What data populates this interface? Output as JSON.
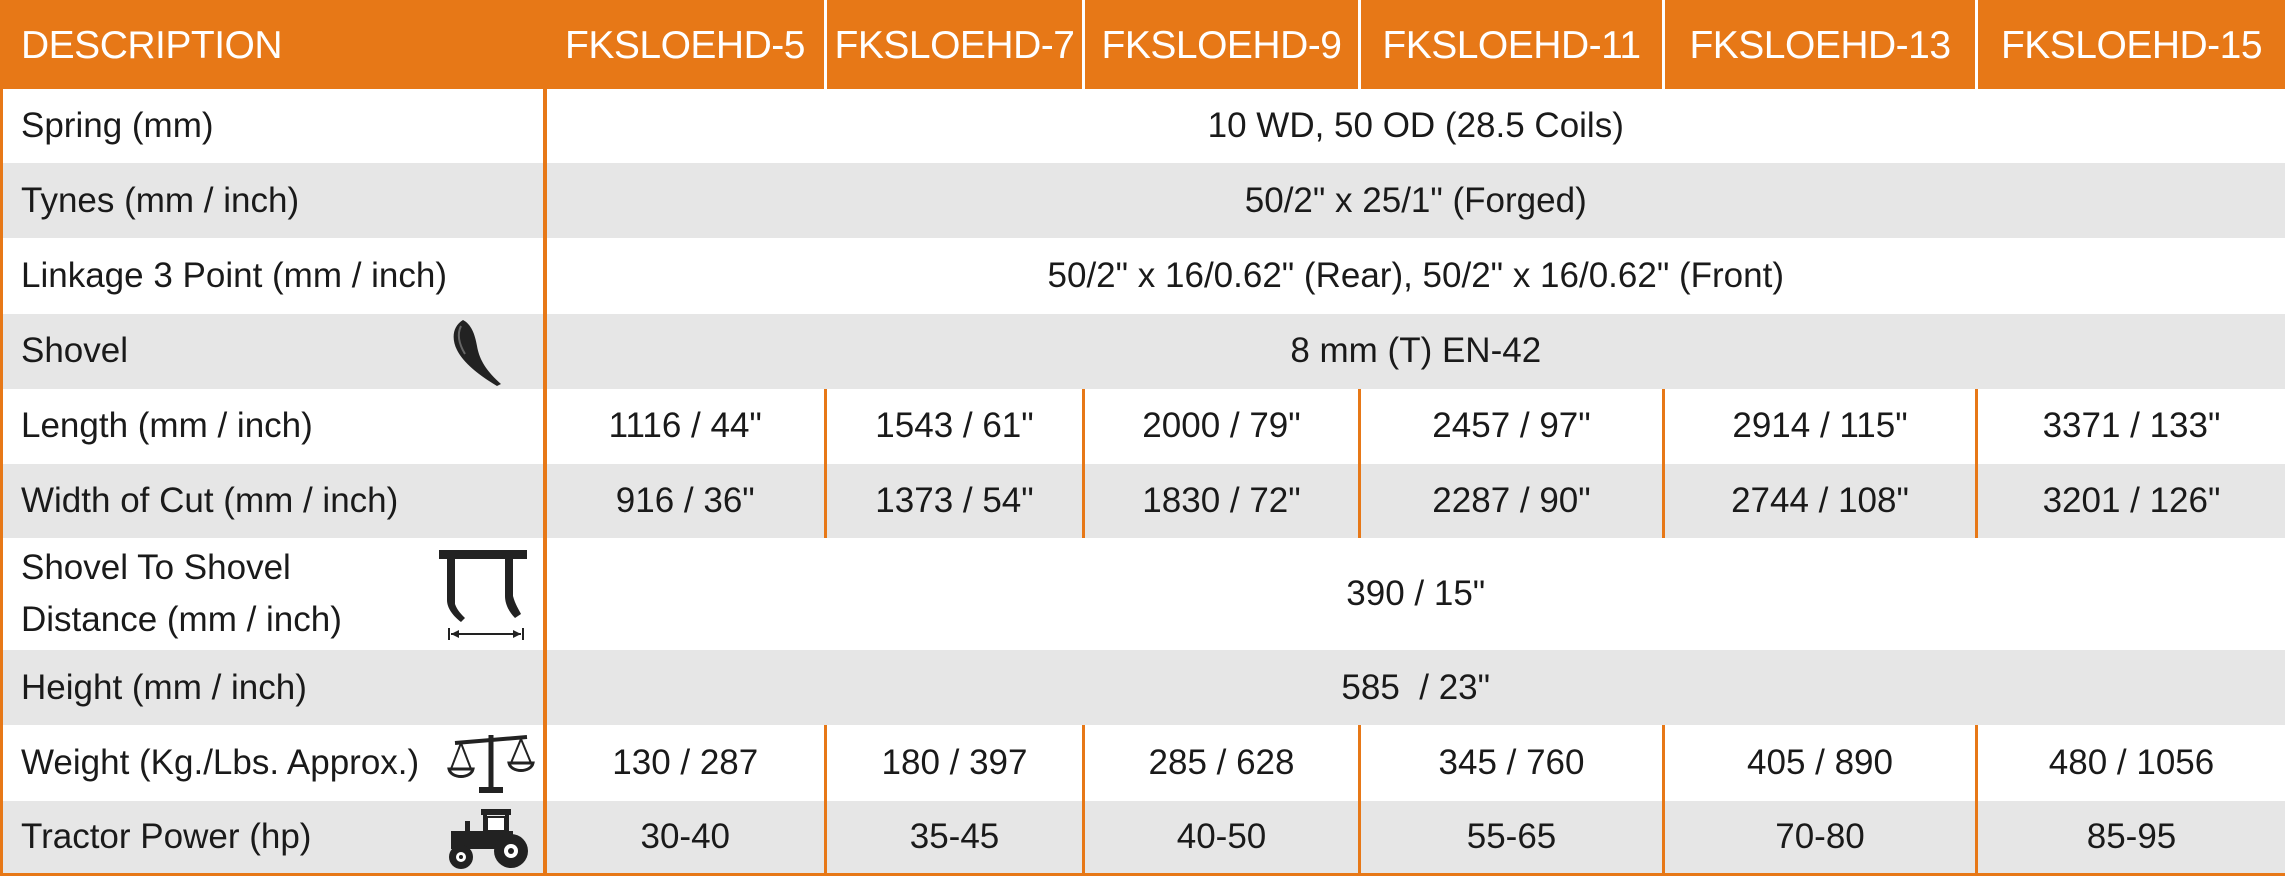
{
  "header": {
    "description": "DESCRIPTION",
    "models": [
      "FKSLOEHD-5",
      "FKSLOEHD-7",
      "FKSLOEHD-9",
      "FKSLOEHD-11",
      "FKSLOEHD-13",
      "FKSLOEHD-15"
    ]
  },
  "rows": {
    "spring": {
      "label": "Spring (mm)",
      "value": "10 WD, 50 OD (28.5 Coils)"
    },
    "tynes": {
      "label": "Tynes (mm / inch)",
      "value": "50/2\" x 25/1\" (Forged)"
    },
    "linkage": {
      "label": "Linkage 3 Point (mm / inch)",
      "value": "50/2\" x 16/0.62\" (Rear), 50/2\" x 16/0.62\" (Front)"
    },
    "shovel": {
      "label": "Shovel",
      "value": "8 mm (T) EN-42",
      "icon": "shovel-icon"
    },
    "length": {
      "label": "Length (mm / inch)",
      "values": [
        "1116 / 44\"",
        "1543 / 61\"",
        "2000 / 79\"",
        "2457 / 97\"",
        "2914 / 115\"",
        "3371 / 133\""
      ]
    },
    "width": {
      "label": "Width of Cut (mm / inch)",
      "values": [
        "916 / 36\"",
        "1373 / 54\"",
        "1830 / 72\"",
        "2287 / 90\"",
        "2744 / 108\"",
        "3201 / 126\""
      ]
    },
    "distance": {
      "label_line1": "Shovel To Shovel",
      "label_line2": "Distance (mm / inch)",
      "value": "390 / 15\"",
      "icon": "tyne-spacing-icon"
    },
    "height": {
      "label": "Height (mm / inch)",
      "value": "585  / 23\""
    },
    "weight": {
      "label": "Weight (Kg./Lbs. Approx.)",
      "values": [
        "130 / 287",
        "180 / 397",
        "285 / 628",
        "345 / 760",
        "405 / 890",
        "480 / 1056"
      ],
      "icon": "balance-scale-icon"
    },
    "power": {
      "label": "Tractor Power (hp)",
      "values": [
        "30-40",
        "35-45",
        "40-50",
        "55-65",
        "70-80",
        "85-95"
      ],
      "icon": "tractor-icon"
    }
  },
  "colors": {
    "accent": "#E77817",
    "stripe": "#e6e6e6",
    "text": "#1a1a1a"
  }
}
